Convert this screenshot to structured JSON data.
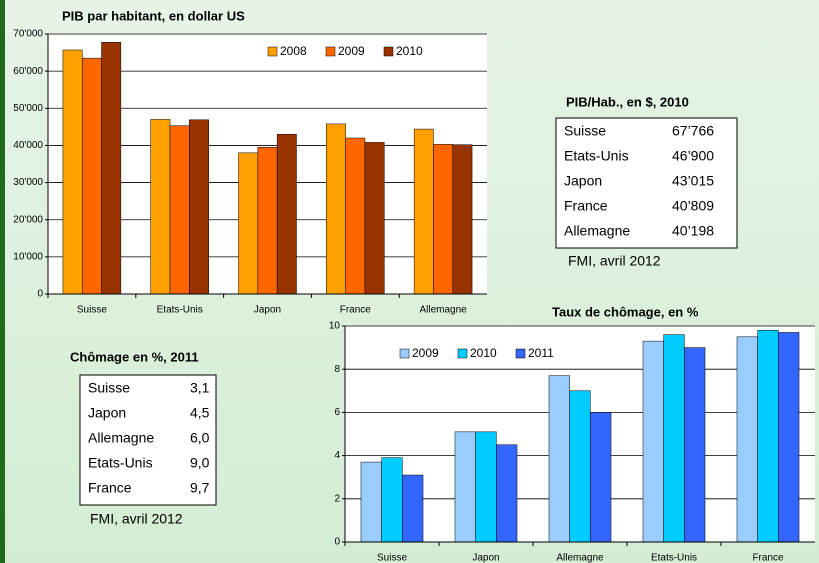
{
  "chart_data": [
    {
      "type": "bar",
      "title": "PIB par habitant, en dollar US",
      "categories": [
        "Suisse",
        "Etats-Unis",
        "Japon",
        "France",
        "Allemagne"
      ],
      "series": [
        {
          "name": "2008",
          "color": "#ffa000",
          "values": [
            65700,
            47000,
            38000,
            45800,
            44400
          ]
        },
        {
          "name": "2009",
          "color": "#ff6600",
          "values": [
            63500,
            45300,
            39500,
            42000,
            40300
          ]
        },
        {
          "name": "2010",
          "color": "#993300",
          "values": [
            67766,
            46900,
            43015,
            40809,
            40198
          ]
        }
      ],
      "ylim": [
        0,
        70000
      ],
      "yticks": [
        0,
        {
          "value": 10000,
          "label": "10'000"
        },
        {
          "value": 20000,
          "label": "20'000"
        },
        {
          "value": 30000,
          "label": "30'000"
        },
        {
          "value": 40000,
          "label": "40'000"
        },
        {
          "value": 50000,
          "label": "50'000"
        },
        {
          "value": 60000,
          "label": "60'000"
        },
        {
          "value": 70000,
          "label": "70'000"
        }
      ],
      "grid": true
    },
    {
      "type": "bar",
      "title": "Taux de chômage, en %",
      "categories": [
        "Suisse",
        "Japon",
        "Allemagne",
        "Etats-Unis",
        "France"
      ],
      "series": [
        {
          "name": "2009",
          "color": "#99ccff",
          "values": [
            3.7,
            5.1,
            7.7,
            9.3,
            9.5
          ]
        },
        {
          "name": "2010",
          "color": "#00ccff",
          "values": [
            3.9,
            5.1,
            7.0,
            9.6,
            9.8
          ]
        },
        {
          "name": "2011",
          "color": "#3366ff",
          "values": [
            3.1,
            4.5,
            6.0,
            9.0,
            9.7
          ]
        }
      ],
      "ylim": [
        0,
        10
      ],
      "yticks": [
        0,
        2,
        4,
        6,
        8,
        10
      ],
      "grid": true
    }
  ],
  "tables": [
    {
      "title": "PIB/Hab., en $, 2010",
      "rows": [
        [
          "Suisse",
          "67’766"
        ],
        [
          "Etats-Unis",
          "46’900"
        ],
        [
          "Japon",
          "43’015"
        ],
        [
          "France",
          "40’809"
        ],
        [
          "Allemagne",
          "40’198"
        ]
      ],
      "source": "FMI, avril 2012"
    },
    {
      "title": "Chômage en %,  2011",
      "rows": [
        [
          "Suisse",
          "3,1"
        ],
        [
          "Japon",
          "4,5"
        ],
        [
          "Allemagne",
          "6,0"
        ],
        [
          "Etats-Unis",
          "9,0"
        ],
        [
          "France",
          "9,7"
        ]
      ],
      "source": "FMI, avril 2012"
    }
  ]
}
